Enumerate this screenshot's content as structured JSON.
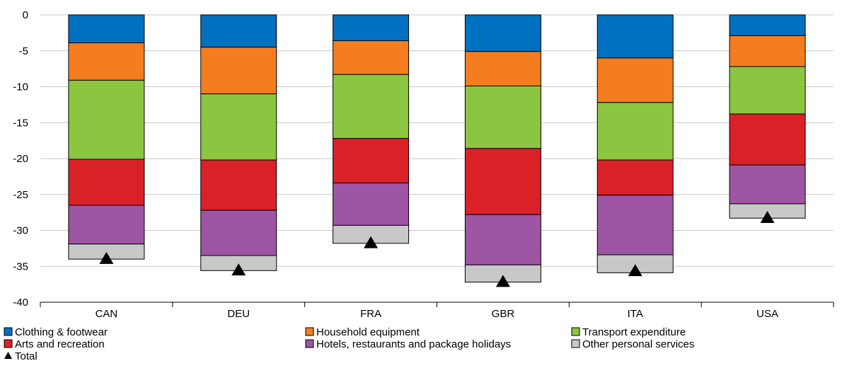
{
  "chart_data": {
    "type": "bar",
    "stacked": true,
    "title": "",
    "xlabel": "",
    "ylabel": "",
    "ylim": [
      -40,
      0
    ],
    "yticks": [
      0,
      -5,
      -10,
      -15,
      -20,
      -25,
      -30,
      -35,
      -40
    ],
    "grid": true,
    "legend_position": "bottom",
    "categories": [
      "CAN",
      "DEU",
      "FRA",
      "GBR",
      "ITA",
      "USA"
    ],
    "series": [
      {
        "name": "Clothing & footwear",
        "color": "#0070c0",
        "values": [
          -3.9,
          -4.5,
          -3.6,
          -5.1,
          -6.0,
          -2.9
        ]
      },
      {
        "name": "Household equipment",
        "color": "#f47d20",
        "values": [
          -5.2,
          -6.5,
          -4.7,
          -4.8,
          -6.2,
          -4.3
        ]
      },
      {
        "name": "Transport expenditure",
        "color": "#8cc540",
        "values": [
          -11.0,
          -9.2,
          -8.9,
          -8.7,
          -8.0,
          -6.6
        ]
      },
      {
        "name": "Arts and recreation",
        "color": "#da2128",
        "values": [
          -6.4,
          -7.0,
          -6.2,
          -9.2,
          -4.9,
          -7.1
        ]
      },
      {
        "name": "Hotels, restaurants and package holidays",
        "color": "#9e55a3",
        "values": [
          -5.4,
          -6.3,
          -5.9,
          -7.0,
          -8.3,
          -5.4
        ]
      },
      {
        "name": "Other personal services",
        "color": "#c8c8c8",
        "values": [
          -2.1,
          -2.1,
          -2.5,
          -2.4,
          -2.5,
          -2.0
        ]
      }
    ],
    "total": {
      "name": "Total",
      "marker": "triangle",
      "color": "#000000",
      "values": [
        -34.0,
        -35.6,
        -31.8,
        -37.2,
        -35.7,
        -28.3
      ]
    }
  }
}
